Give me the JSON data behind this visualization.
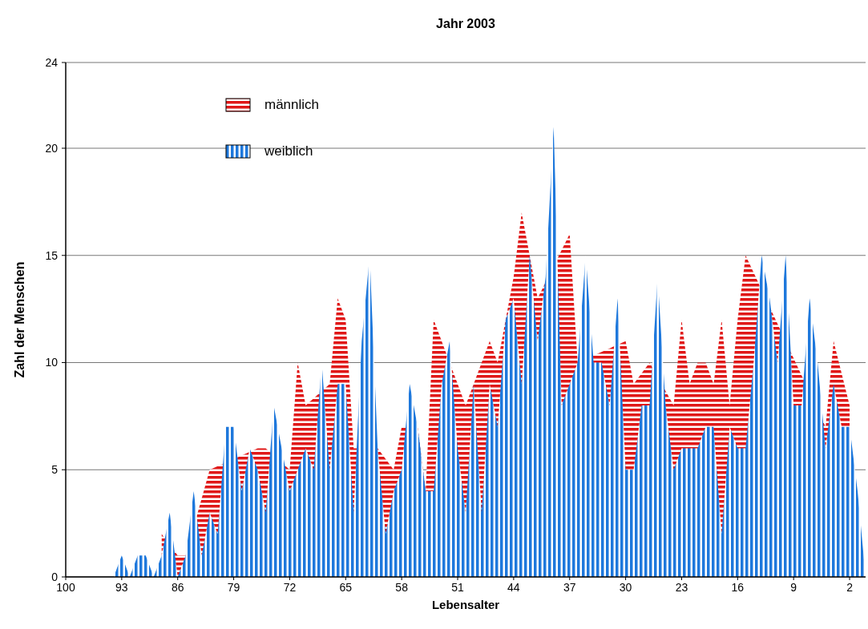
{
  "chart_data": {
    "type": "area",
    "title": "Jahr 2003",
    "xlabel": "Lebensalter",
    "ylabel": "Zahl der Menschen",
    "x": [
      100,
      99,
      98,
      97,
      96,
      95,
      94,
      93,
      92,
      91,
      90,
      89,
      88,
      87,
      86,
      85,
      84,
      83,
      82,
      81,
      80,
      79,
      78,
      77,
      76,
      75,
      74,
      73,
      72,
      71,
      70,
      69,
      68,
      67,
      66,
      65,
      64,
      63,
      62,
      61,
      60,
      59,
      58,
      57,
      56,
      55,
      54,
      53,
      52,
      51,
      50,
      49,
      48,
      47,
      46,
      45,
      44,
      43,
      42,
      41,
      40,
      39,
      38,
      37,
      36,
      35,
      34,
      33,
      32,
      31,
      30,
      29,
      28,
      27,
      26,
      25,
      24,
      23,
      22,
      21,
      20,
      19,
      18,
      17,
      16,
      15,
      14,
      13,
      12,
      11,
      10,
      9,
      8,
      7,
      6,
      5,
      4,
      3,
      2,
      1,
      0
    ],
    "xlim": [
      100,
      0
    ],
    "xticks": [
      100,
      93,
      86,
      79,
      72,
      65,
      58,
      51,
      44,
      37,
      30,
      23,
      16,
      9,
      2
    ],
    "ylim": [
      0,
      24
    ],
    "yticks": [
      0,
      5,
      10,
      15,
      20,
      24
    ],
    "grid": "y",
    "legend": "top left",
    "series": [
      {
        "name": "männlich",
        "color": "#e01818",
        "values": [
          null,
          null,
          null,
          null,
          null,
          null,
          null,
          null,
          null,
          null,
          null,
          null,
          2,
          null,
          1,
          1,
          null,
          null,
          5,
          null,
          null,
          null,
          null,
          null,
          6,
          6,
          null,
          null,
          5,
          10,
          8,
          null,
          null,
          9,
          13,
          12,
          6,
          null,
          null,
          6,
          null,
          5,
          7,
          null,
          7,
          4,
          12,
          null,
          null,
          null,
          8,
          null,
          null,
          11,
          10,
          12,
          14,
          17,
          null,
          13,
          null,
          null,
          null,
          16,
          10,
          null,
          null,
          null,
          null,
          null,
          11,
          9,
          null,
          10,
          null,
          null,
          8,
          12,
          9,
          10,
          10,
          9,
          12,
          8,
          12,
          15,
          null,
          null,
          null,
          null,
          null,
          null,
          null,
          null,
          null,
          7,
          11,
          null,
          8,
          null,
          null
        ]
      },
      {
        "name": "weiblich",
        "color": "#1e78dc",
        "values": [
          0,
          0,
          0,
          0,
          0,
          0,
          0,
          1,
          0,
          1,
          1,
          0,
          1,
          3,
          0,
          1,
          4,
          1,
          3,
          2,
          7,
          7,
          4,
          6,
          5,
          3,
          8,
          6,
          4,
          5,
          6,
          5,
          10,
          5,
          9,
          9,
          3,
          11,
          15,
          6,
          2,
          4,
          5,
          9,
          7,
          4,
          4,
          9,
          11,
          6,
          3,
          9,
          3,
          9,
          7,
          12,
          13,
          9,
          15,
          11,
          14,
          21,
          8,
          9,
          10,
          15,
          10,
          10,
          8,
          13,
          5,
          5,
          8,
          8,
          14,
          8,
          5,
          6,
          6,
          6,
          7,
          7,
          2,
          7,
          6,
          6,
          10,
          15,
          13,
          10,
          15,
          8,
          8,
          13,
          10,
          6,
          9,
          7,
          7,
          4,
          0
        ]
      }
    ]
  }
}
